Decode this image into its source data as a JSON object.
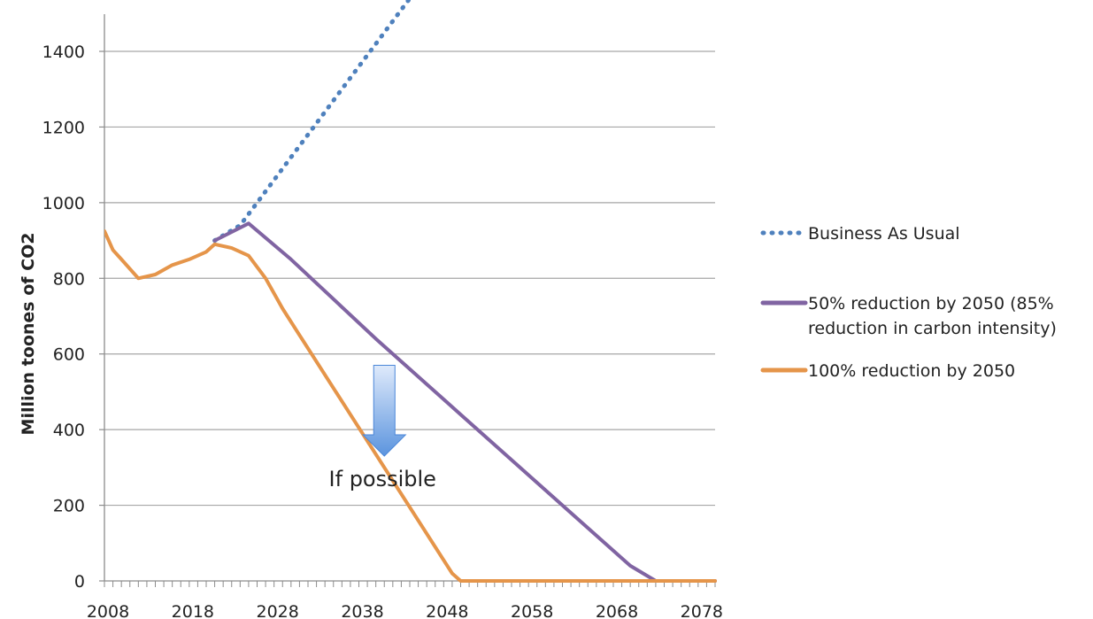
{
  "chart_data": {
    "type": "line",
    "title": "",
    "xlabel": "",
    "ylabel": "Million toones of CO2",
    "xlim": [
      2008,
      2080
    ],
    "ylim": [
      0,
      1400
    ],
    "yticks": [
      "0",
      "200",
      "400",
      "600",
      "800",
      "1000",
      "1200",
      "1400"
    ],
    "xticks": [
      "2008",
      "2018",
      "2028",
      "2038",
      "2048",
      "2058",
      "2068",
      "2078"
    ],
    "grid": true,
    "legend": "right",
    "series": [
      {
        "name": "Business As Usual",
        "style": "dotted",
        "color": "#4f81bd",
        "x": [
          2021,
          2024,
          2026,
          2028,
          2030,
          2032,
          2034,
          2036,
          2038,
          2040,
          2042,
          2044
        ],
        "y": [
          900,
          940,
          1000,
          1060,
          1120,
          1180,
          1240,
          1300,
          1360,
          1420,
          1480,
          1540
        ]
      },
      {
        "name": "50% reduction by 2050 (85% reduction in carbon intensity)",
        "legend_lines": [
          "50% reduction by 2050 (85%",
          "reduction in carbon intensity)"
        ],
        "style": "solid",
        "color": "#8064a2",
        "x": [
          2021,
          2025,
          2030,
          2040,
          2050,
          2060,
          2070,
          2073,
          2080
        ],
        "y": [
          900,
          945,
          850,
          640,
          440,
          240,
          40,
          0,
          0
        ]
      },
      {
        "name": "100% reduction by 2050",
        "style": "solid",
        "color": "#e5954a",
        "x": [
          2008,
          2009,
          2010,
          2012,
          2014,
          2016,
          2018,
          2020,
          2021,
          2023,
          2025,
          2027,
          2029,
          2031,
          2049,
          2050,
          2080
        ],
        "y": [
          925,
          875,
          850,
          800,
          810,
          835,
          850,
          870,
          890,
          880,
          860,
          800,
          720,
          650,
          20,
          0,
          0
        ]
      }
    ],
    "annotations": [
      {
        "text": "If possible",
        "arrow": "down",
        "x": 2041,
        "y_from": 570,
        "y_to": 330
      }
    ]
  }
}
